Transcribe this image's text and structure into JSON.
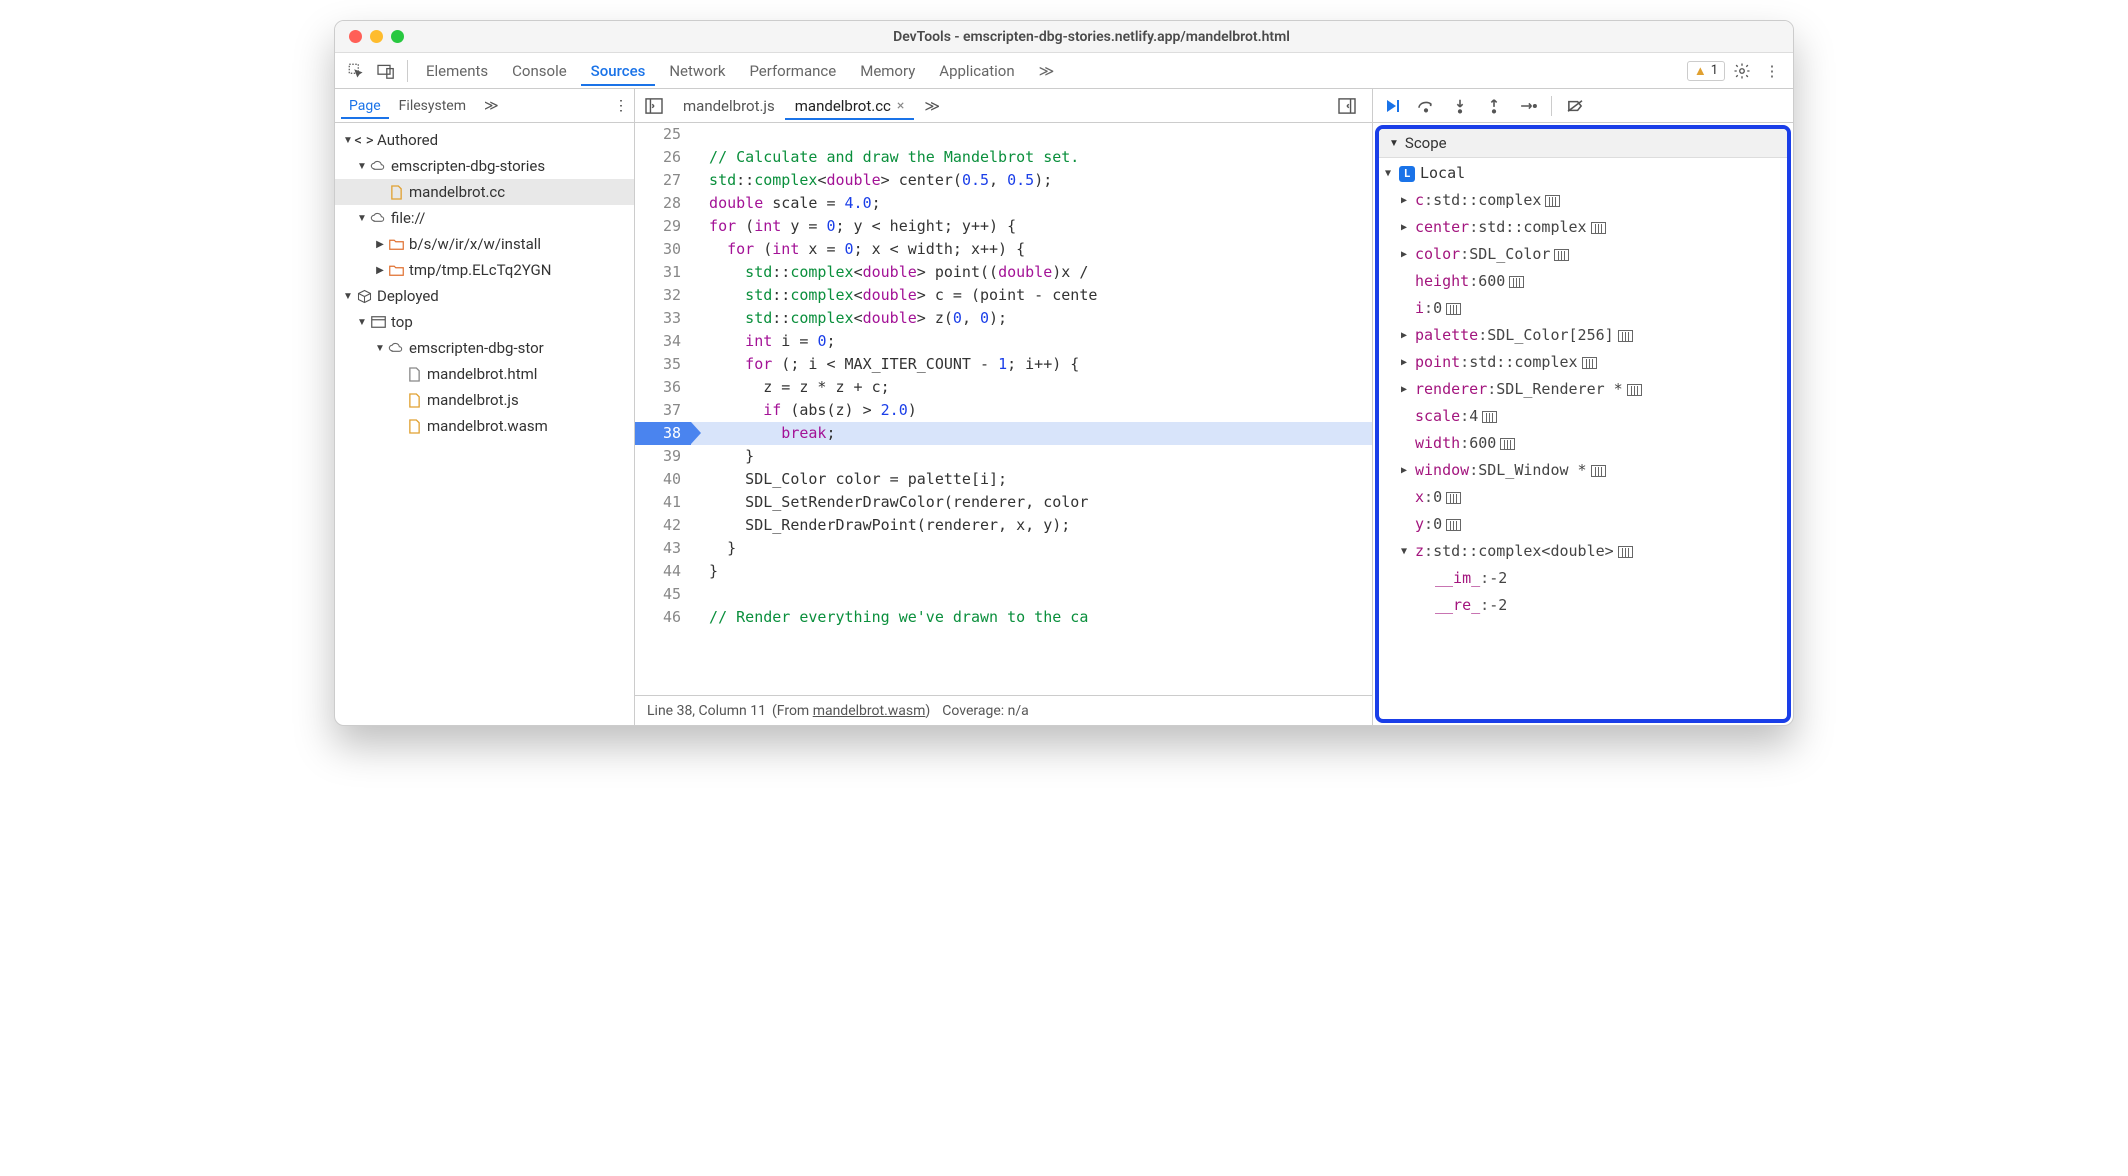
{
  "window_title": "DevTools - emscripten-dbg-stories.netlify.app/mandelbrot.html",
  "main_tabs": {
    "elements": "Elements",
    "console": "Console",
    "sources": "Sources",
    "network": "Network",
    "performance": "Performance",
    "memory": "Memory",
    "application": "Application"
  },
  "warnings": "1",
  "side_tabs": {
    "page": "Page",
    "filesystem": "Filesystem"
  },
  "tree": {
    "authored": "Authored",
    "cloud1": "emscripten-dbg-stories",
    "mandelbrot_cc": "mandelbrot.cc",
    "file": "file://",
    "folder1": "b/s/w/ir/x/w/install",
    "folder2": "tmp/tmp.ELcTq2YGN",
    "deployed": "Deployed",
    "top": "top",
    "cloud2": "emscripten-dbg-stor",
    "mandelbrot_html": "mandelbrot.html",
    "mandelbrot_js": "mandelbrot.js",
    "mandelbrot_wasm": "mandelbrot.wasm"
  },
  "file_tabs": {
    "js": "mandelbrot.js",
    "cc": "mandelbrot.cc"
  },
  "code": {
    "l25_num": "25",
    "l26_num": "26",
    "l26": "  // Calculate and draw the Mandelbrot set.",
    "l27_num": "27",
    "l27_a": "  std",
    "l27_b": "::",
    "l27_c": "complex",
    "l27_d": "<",
    "l27_e": "double",
    "l27_f": "> center(",
    "l27_g": "0.5",
    "l27_h": ", ",
    "l27_i": "0.5",
    "l27_j": ");",
    "l28_num": "28",
    "l28_a": "  double",
    "l28_b": " scale = ",
    "l28_c": "4.0",
    "l28_d": ";",
    "l29_num": "29",
    "l29_a": "  for",
    "l29_b": " (",
    "l29_c": "int",
    "l29_d": " y = ",
    "l29_e": "0",
    "l29_f": "; y < height; y++) {",
    "l30_num": "30",
    "l30_a": "    for",
    "l30_b": " (",
    "l30_c": "int",
    "l30_d": " x = ",
    "l30_e": "0",
    "l30_f": "; x < width; x++) {",
    "l31_num": "31",
    "l31_a": "      std",
    "l31_b": "::",
    "l31_c": "complex",
    "l31_d": "<",
    "l31_e": "double",
    "l31_f": "> point((",
    "l31_g": "double",
    "l31_h": ")x /",
    "l32_num": "32",
    "l32_a": "      std",
    "l32_b": "::",
    "l32_c": "complex",
    "l32_d": "<",
    "l32_e": "double",
    "l32_f": "> c = (point - cente",
    "l33_num": "33",
    "l33_a": "      std",
    "l33_b": "::",
    "l33_c": "complex",
    "l33_d": "<",
    "l33_e": "double",
    "l33_f": "> z(",
    "l33_g": "0",
    "l33_h": ", ",
    "l33_i": "0",
    "l33_j": ");",
    "l34_num": "34",
    "l34_a": "      int",
    "l34_b": " i = ",
    "l34_c": "0",
    "l34_d": ";",
    "l35_num": "35",
    "l35_a": "      for",
    "l35_b": " (; i < MAX_ITER_COUNT - ",
    "l35_c": "1",
    "l35_d": "; i++) {",
    "l36_num": "36",
    "l36": "        z = z * z + c;",
    "l37_num": "37",
    "l37_a": "        if",
    "l37_b": " (abs(z) > ",
    "l37_c": "2.0",
    "l37_d": ")",
    "l38_num": "38",
    "l38_a": "          break",
    "l38_b": ";",
    "l39_num": "39",
    "l39": "      }",
    "l40_num": "40",
    "l40": "      SDL_Color color = palette[i];",
    "l41_num": "41",
    "l41": "      SDL_SetRenderDrawColor(renderer, color",
    "l42_num": "42",
    "l42": "      SDL_RenderDrawPoint(renderer, x, y);",
    "l43_num": "43",
    "l43": "    }",
    "l44_num": "44",
    "l44": "  }",
    "l45_num": "45",
    "l45": "",
    "l46_num": "46",
    "l46": "  // Render everything we've drawn to the ca"
  },
  "status": {
    "line": "Line 38, Column 11",
    "from": "(From ",
    "wasm": "mandelbrot.wasm",
    "close": ")",
    "coverage": "Coverage: n/a"
  },
  "scope": {
    "title": "Scope",
    "local": "Local",
    "vars": [
      {
        "n": "c",
        "v": "std::complex<double>",
        "exp": true
      },
      {
        "n": "center",
        "v": "std::complex<double>",
        "exp": true
      },
      {
        "n": "color",
        "v": "SDL_Color",
        "exp": true
      },
      {
        "n": "height",
        "v": "600",
        "exp": false
      },
      {
        "n": "i",
        "v": "0",
        "exp": false
      },
      {
        "n": "palette",
        "v": "SDL_Color[256]",
        "exp": true
      },
      {
        "n": "point",
        "v": "std::complex<double>",
        "exp": true
      },
      {
        "n": "renderer",
        "v": "SDL_Renderer *",
        "exp": true
      },
      {
        "n": "scale",
        "v": "4",
        "exp": false
      },
      {
        "n": "width",
        "v": "600",
        "exp": false
      },
      {
        "n": "window",
        "v": "SDL_Window *",
        "exp": true
      },
      {
        "n": "x",
        "v": "0",
        "exp": false
      },
      {
        "n": "y",
        "v": "0",
        "exp": false
      }
    ],
    "z": {
      "n": "z",
      "v": "std::complex<double>"
    },
    "z_im": {
      "n": "__im_",
      "v": "-2"
    },
    "z_re": {
      "n": "__re_",
      "v": "-2"
    }
  }
}
